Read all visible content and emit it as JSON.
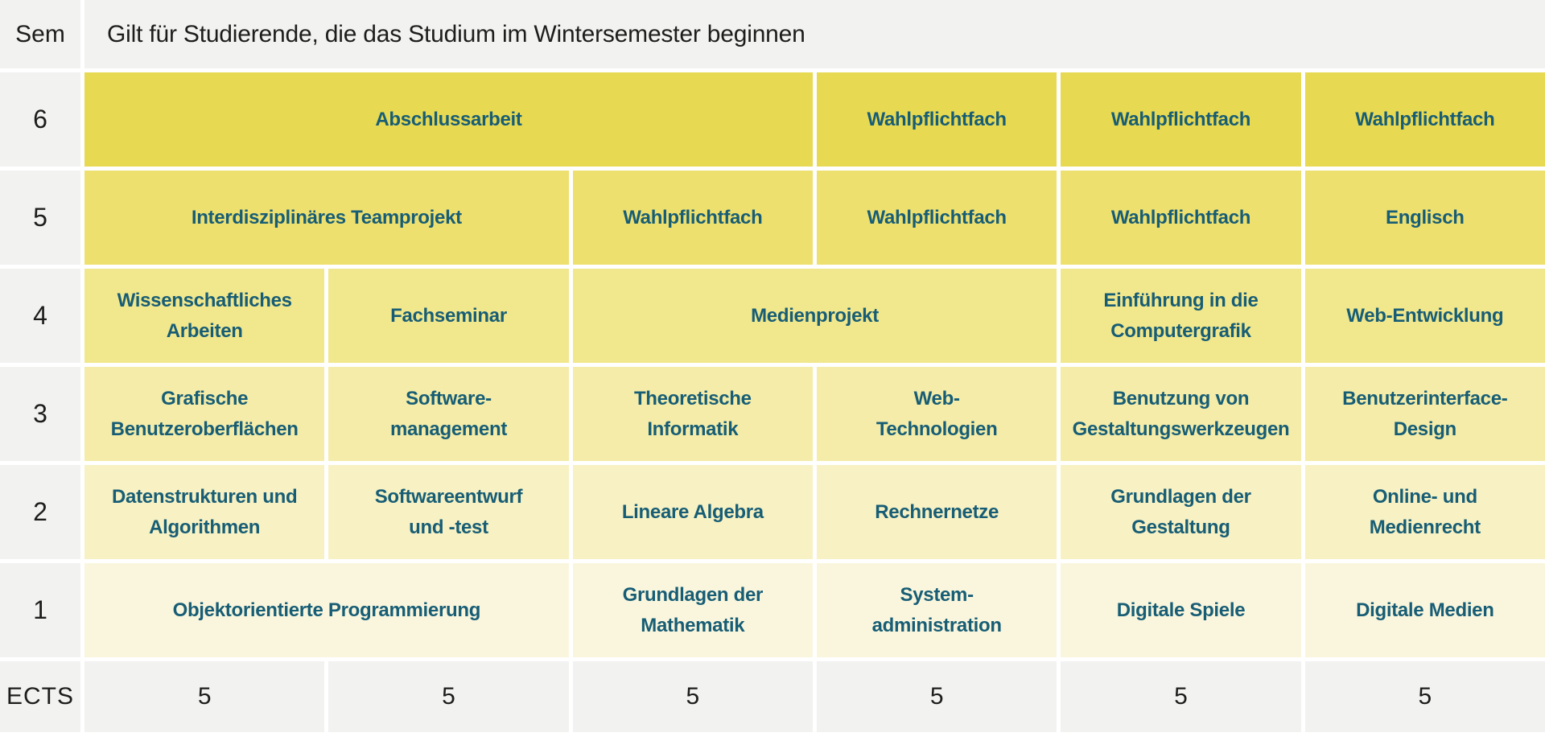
{
  "header": {
    "sem_label": "Sem",
    "title": "Gilt für Studierende, die das Studium im Wintersemester beginnen"
  },
  "rows": [
    {
      "semester": "6",
      "cells": [
        {
          "label": "Abschlussarbeit",
          "span": 3
        },
        {
          "label": "Wahlpflichtfach",
          "span": 1
        },
        {
          "label": "Wahlpflichtfach",
          "span": 1
        },
        {
          "label": "Wahlpflichtfach",
          "span": 1
        }
      ]
    },
    {
      "semester": "5",
      "cells": [
        {
          "label": "Interdisziplinäres Teamprojekt",
          "span": 2
        },
        {
          "label": "Wahlpflichtfach",
          "span": 1
        },
        {
          "label": "Wahlpflichtfach",
          "span": 1
        },
        {
          "label": "Wahlpflichtfach",
          "span": 1
        },
        {
          "label": "Englisch",
          "span": 1
        }
      ]
    },
    {
      "semester": "4",
      "cells": [
        {
          "label": "Wissenschaftliches\nArbeiten",
          "span": 1
        },
        {
          "label": "Fachseminar",
          "span": 1
        },
        {
          "label": "Medienprojekt",
          "span": 2
        },
        {
          "label": "Einführung in die\nComputergrafik",
          "span": 1
        },
        {
          "label": "Web-Entwicklung",
          "span": 1
        }
      ]
    },
    {
      "semester": "3",
      "cells": [
        {
          "label": "Grafische\nBenutzeroberflächen",
          "span": 1
        },
        {
          "label": "Software-\nmanagement",
          "span": 1
        },
        {
          "label": "Theoretische\nInformatik",
          "span": 1
        },
        {
          "label": "Web-\nTechnologien",
          "span": 1
        },
        {
          "label": "Benutzung von\nGestaltungswerkzeugen",
          "span": 1
        },
        {
          "label": "Benutzerinterface-\nDesign",
          "span": 1
        }
      ]
    },
    {
      "semester": "2",
      "cells": [
        {
          "label": "Datenstrukturen und\nAlgorithmen",
          "span": 1
        },
        {
          "label": "Softwareentwurf\nund -test",
          "span": 1
        },
        {
          "label": "Lineare Algebra",
          "span": 1
        },
        {
          "label": "Rechnernetze",
          "span": 1
        },
        {
          "label": "Grundlagen der\nGestaltung",
          "span": 1
        },
        {
          "label": "Online- und\nMedienrecht",
          "span": 1
        }
      ]
    },
    {
      "semester": "1",
      "cells": [
        {
          "label": "Objektorientierte Programmierung",
          "span": 2
        },
        {
          "label": "Grundlagen der\nMathematik",
          "span": 1
        },
        {
          "label": "System-\nadministration",
          "span": 1
        },
        {
          "label": "Digitale Spiele",
          "span": 1
        },
        {
          "label": "Digitale Medien",
          "span": 1
        }
      ]
    }
  ],
  "ects": {
    "label": "ECTS",
    "values": [
      "5",
      "5",
      "5",
      "5",
      "5",
      "5"
    ]
  },
  "colors": {
    "row_sem6": "#e7d952",
    "row_sem5": "#eee06f",
    "row_sem4": "#f1e78c",
    "row_sem3": "#f4eca8",
    "row_sem2": "#f7f1c3",
    "row_sem1": "#faf6dd",
    "header_bg": "#f2f2f1",
    "course_text": "#175d75",
    "dark_text": "#1d1d1b",
    "gap": "#ffffff"
  }
}
